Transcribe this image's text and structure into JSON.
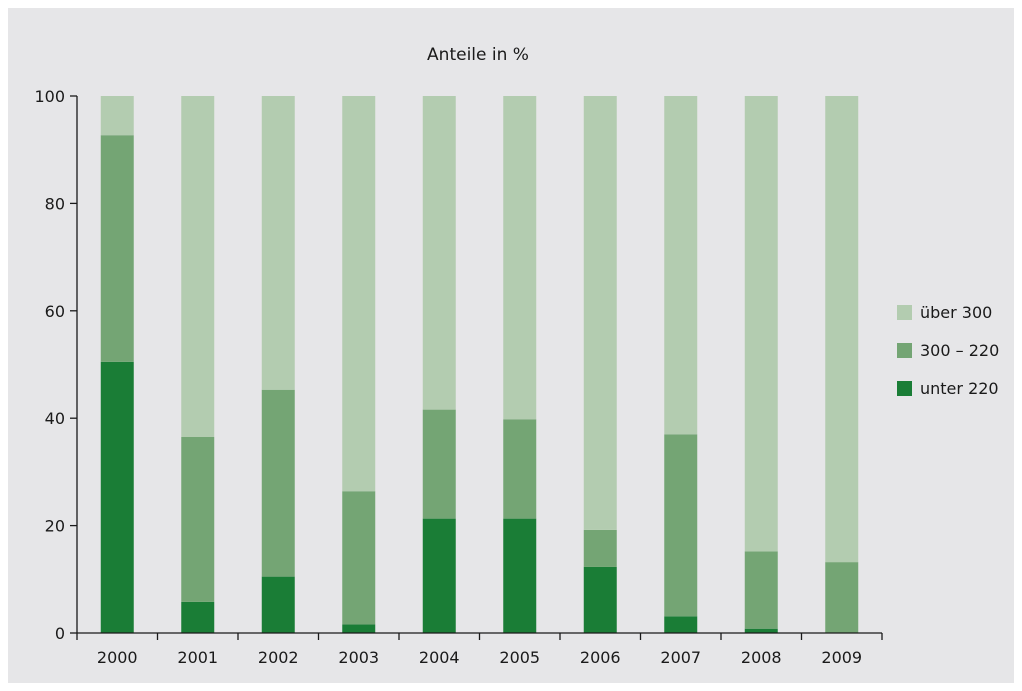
{
  "colors": {
    "over_300": "#b3ccb0",
    "mid_300_220": "#74a574",
    "under_220": "#1a7d36",
    "background": "#e6e6e8",
    "axis": "#1a1a1a"
  },
  "chart_data": {
    "type": "bar",
    "stacked": true,
    "title": "Anteile in %",
    "xlabel": "",
    "ylabel": "",
    "ylim": [
      0,
      100
    ],
    "yticks": [
      0,
      20,
      40,
      60,
      80,
      100
    ],
    "categories": [
      "2000",
      "2001",
      "2002",
      "2003",
      "2004",
      "2005",
      "2006",
      "2007",
      "2008",
      "2009"
    ],
    "series": [
      {
        "name": "unter 220",
        "values": [
          50.5,
          5.8,
          10.5,
          1.6,
          21.3,
          21.3,
          12.3,
          3.1,
          0.8,
          0.0
        ]
      },
      {
        "name": "300 – 220",
        "values": [
          42.2,
          30.7,
          34.8,
          24.8,
          20.3,
          18.5,
          6.9,
          33.9,
          14.4,
          13.2
        ]
      },
      {
        "name": "über 300",
        "values": [
          7.3,
          63.5,
          54.7,
          73.6,
          58.4,
          60.2,
          80.8,
          63.0,
          84.8,
          86.8
        ]
      }
    ],
    "legend": {
      "position": "right",
      "order": [
        "über 300",
        "300 – 220",
        "unter 220"
      ]
    },
    "grid": false
  }
}
